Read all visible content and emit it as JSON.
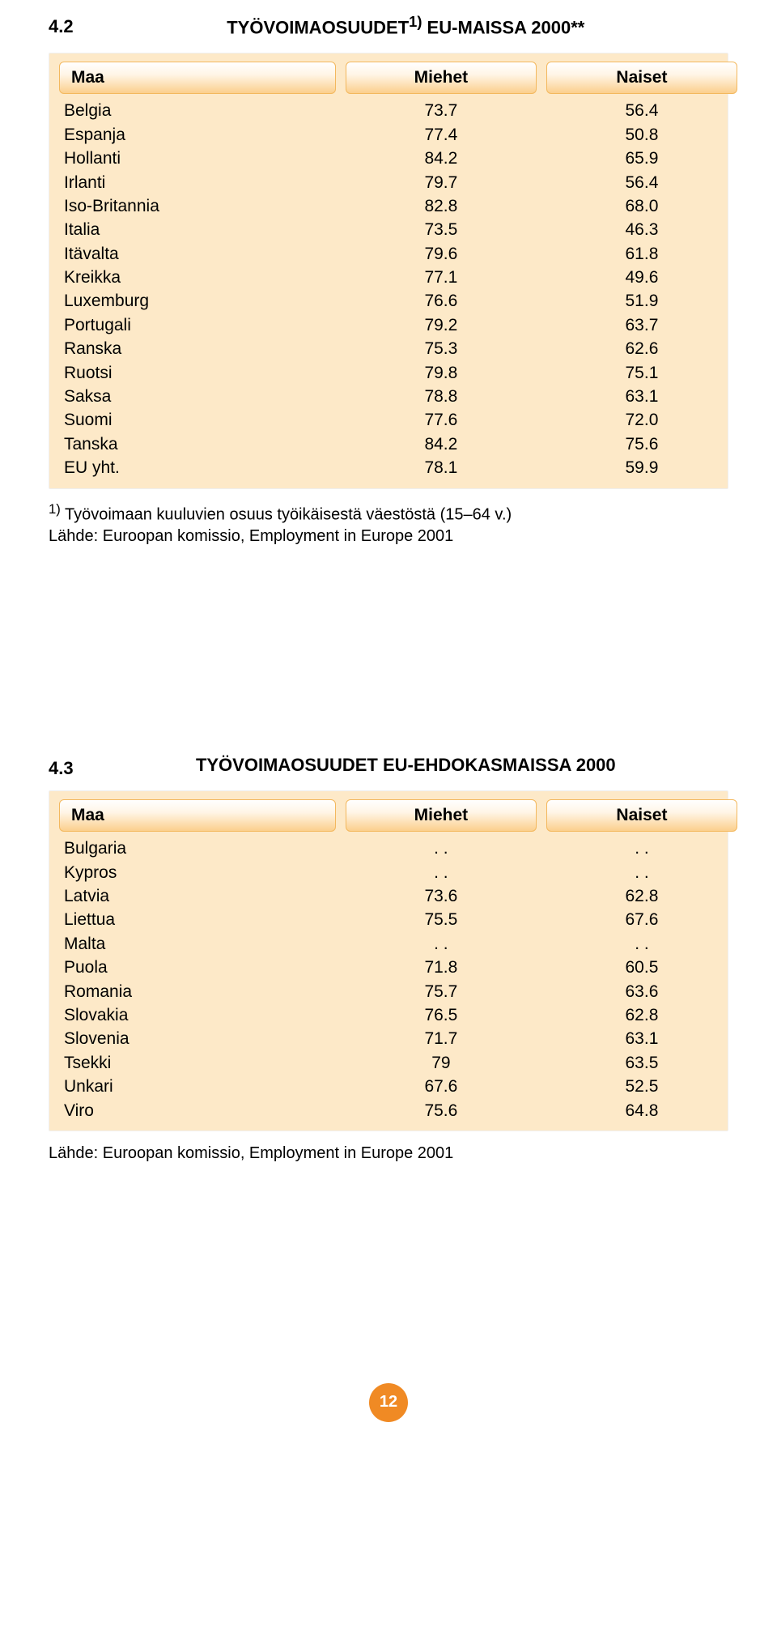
{
  "section1": {
    "num": "4.2",
    "title_html": "TYÖVOIMAOSUUDET<sup>1)</sup> EU-MAISSA 2000**",
    "headers": {
      "country": "Maa",
      "men": "Miehet",
      "women": "Naiset"
    },
    "rows": [
      {
        "country": "Belgia",
        "men": "73.7",
        "women": "56.4"
      },
      {
        "country": "Espanja",
        "men": "77.4",
        "women": "50.8"
      },
      {
        "country": "Hollanti",
        "men": "84.2",
        "women": "65.9"
      },
      {
        "country": "Irlanti",
        "men": "79.7",
        "women": "56.4"
      },
      {
        "country": "Iso-Britannia",
        "men": "82.8",
        "women": "68.0"
      },
      {
        "country": "Italia",
        "men": "73.5",
        "women": "46.3"
      },
      {
        "country": "Itävalta",
        "men": "79.6",
        "women": "61.8"
      },
      {
        "country": "Kreikka",
        "men": "77.1",
        "women": "49.6"
      },
      {
        "country": "Luxemburg",
        "men": "76.6",
        "women": "51.9"
      },
      {
        "country": "Portugali",
        "men": "79.2",
        "women": "63.7"
      },
      {
        "country": "Ranska",
        "men": "75.3",
        "women": "62.6"
      },
      {
        "country": "Ruotsi",
        "men": "79.8",
        "women": "75.1"
      },
      {
        "country": "Saksa",
        "men": "78.8",
        "women": "63.1"
      },
      {
        "country": "Suomi",
        "men": "77.6",
        "women": "72.0"
      },
      {
        "country": "Tanska",
        "men": "84.2",
        "women": "75.6"
      },
      {
        "country": "EU yht.",
        "men": "78.1",
        "women": "59.9"
      }
    ],
    "footnote_html": "<sup>1)</sup> Työvoimaan kuuluvien osuus työikäisestä väestöstä (15–64 v.)<br>Lähde: Euroopan komissio, Employment in Europe 2001"
  },
  "section2": {
    "num": "4.3",
    "title": "TYÖVOIMAOSUUDET EU-EHDOKASMAISSA 2000",
    "headers": {
      "country": "Maa",
      "men": "Miehet",
      "women": "Naiset"
    },
    "rows": [
      {
        "country": "Bulgaria",
        "men": ". .",
        "women": ". ."
      },
      {
        "country": "Kypros",
        "men": ". .",
        "women": ". ."
      },
      {
        "country": "Latvia",
        "men": "73.6",
        "women": "62.8"
      },
      {
        "country": "Liettua",
        "men": "75.5",
        "women": "67.6"
      },
      {
        "country": "Malta",
        "men": ". .",
        "women": ". ."
      },
      {
        "country": "Puola",
        "men": "71.8",
        "women": "60.5"
      },
      {
        "country": "Romania",
        "men": "75.7",
        "women": "63.6"
      },
      {
        "country": "Slovakia",
        "men": "76.5",
        "women": "62.8"
      },
      {
        "country": "Slovenia",
        "men": "71.7",
        "women": "63.1"
      },
      {
        "country": "Tsekki",
        "men": "79",
        "women": "63.5"
      },
      {
        "country": "Unkari",
        "men": "67.6",
        "women": "52.5"
      },
      {
        "country": "Viro",
        "men": "75.6",
        "women": "64.8"
      }
    ],
    "footnote": "Lähde: Euroopan komissio, Employment in Europe 2001"
  },
  "page_number": "12",
  "style": {
    "table_bg": "#fde9c8",
    "header_gradient_top": "#ffffff",
    "header_gradient_bottom": "#fbcf8d",
    "header_border": "#f3b85e",
    "badge_bg": "#f08a24",
    "badge_fg": "#ffffff",
    "font_size_title": 22,
    "font_size_body": 21,
    "font_size_footnote": 20
  }
}
